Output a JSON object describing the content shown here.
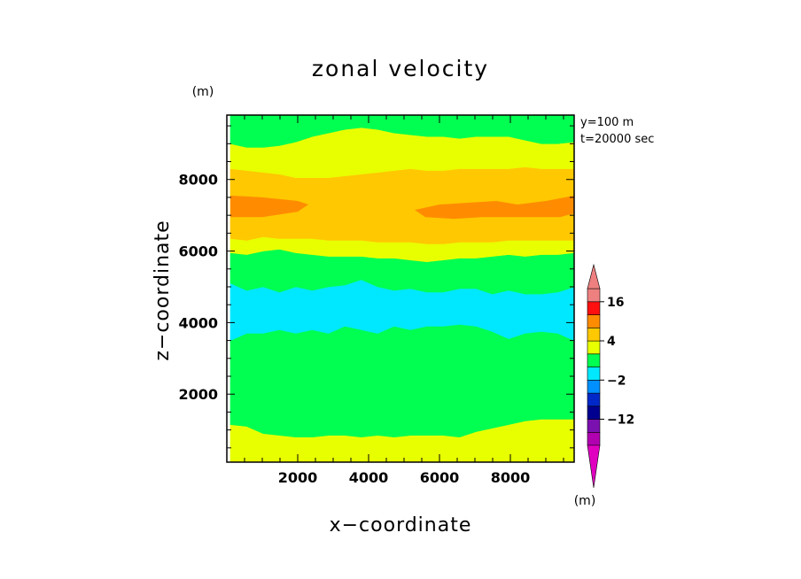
{
  "chart_data": {
    "type": "heatmap",
    "title": "zonal velocity",
    "xlabel": "x−coordinate",
    "ylabel": "z−coordinate",
    "y_unit": "(m)",
    "colorbar_unit": "(m)",
    "annotation": [
      "y=100  m",
      "t=20000  sec"
    ],
    "xlim": [
      0,
      9800
    ],
    "ylim": [
      100,
      9800
    ],
    "x_ticks": [
      "2000",
      "4000",
      "6000",
      "8000"
    ],
    "x_tick_values": [
      2000,
      4000,
      6000,
      8000
    ],
    "y_ticks": [
      "2000",
      "4000",
      "6000",
      "8000"
    ],
    "y_tick_values": [
      2000,
      4000,
      6000,
      8000
    ],
    "colorbar_labels": [
      "16",
      "4",
      "−2",
      "−12"
    ],
    "colorbar_label_levels": [
      16,
      4,
      -2,
      -12
    ],
    "colorbar_levels": [
      -20,
      -16,
      -12,
      -8,
      -4,
      -2,
      0,
      2,
      4,
      8,
      12,
      16,
      20
    ],
    "colorbar_colors": [
      "#b000b0",
      "#7a10b0",
      "#000090",
      "#0028c8",
      "#0090ff",
      "#00e8ff",
      "#00ff50",
      "#e8ff00",
      "#ffc800",
      "#ff8c00",
      "#ff1010",
      "#ee8080"
    ],
    "bands": [
      {
        "range": "2 to 4",
        "color": "#e8ff00",
        "lower": 100,
        "upper": [
          1150,
          1100,
          900,
          850,
          800,
          800,
          850,
          850,
          800,
          850,
          800,
          850,
          850,
          850,
          800,
          950,
          1050,
          1150,
          1250,
          1300,
          1300,
          1300
        ]
      },
      {
        "range": "0 to 2",
        "color": "#00ff50",
        "lower": [
          1150,
          1100,
          900,
          850,
          800,
          800,
          850,
          850,
          800,
          850,
          800,
          850,
          850,
          850,
          800,
          950,
          1050,
          1150,
          1250,
          1300,
          1300,
          1300
        ],
        "upper": [
          3500,
          3700,
          3700,
          3800,
          3700,
          3800,
          3700,
          3900,
          3800,
          3700,
          3900,
          3800,
          3900,
          3900,
          3950,
          3900,
          3750,
          3550,
          3700,
          3750,
          3700,
          3500
        ]
      },
      {
        "range": "-2 to 0",
        "color": "#00e8ff",
        "lower": [
          3500,
          3700,
          3700,
          3800,
          3700,
          3800,
          3700,
          3900,
          3800,
          3700,
          3900,
          3800,
          3900,
          3900,
          3950,
          3900,
          3750,
          3550,
          3700,
          3750,
          3700,
          3500
        ],
        "upper": [
          5100,
          4900,
          5000,
          4850,
          5000,
          4900,
          5000,
          5050,
          5200,
          5000,
          4900,
          4950,
          4850,
          4850,
          4950,
          4950,
          4800,
          4900,
          4800,
          4800,
          4850,
          5000
        ]
      },
      {
        "range": "0 to 2",
        "color": "#00ff50",
        "lower": [
          5100,
          4900,
          5000,
          4850,
          5000,
          4900,
          5000,
          5050,
          5200,
          5000,
          4900,
          4950,
          4850,
          4850,
          4950,
          4950,
          4800,
          4900,
          4800,
          4800,
          4850,
          5000
        ],
        "upper": [
          5950,
          5900,
          6000,
          6050,
          5950,
          5900,
          5850,
          5850,
          5850,
          5800,
          5800,
          5750,
          5700,
          5750,
          5800,
          5800,
          5850,
          5900,
          5850,
          5900,
          5900,
          5950
        ]
      },
      {
        "range": "2 to 4",
        "color": "#e8ff00",
        "lower": [
          5950,
          5900,
          6000,
          6050,
          5950,
          5900,
          5850,
          5850,
          5850,
          5800,
          5800,
          5750,
          5700,
          5750,
          5800,
          5800,
          5850,
          5900,
          5850,
          5900,
          5900,
          5950
        ],
        "upper": [
          6350,
          6300,
          6400,
          6350,
          6350,
          6350,
          6300,
          6300,
          6300,
          6250,
          6250,
          6250,
          6200,
          6200,
          6250,
          6250,
          6250,
          6300,
          6300,
          6300,
          6300,
          6300
        ]
      },
      {
        "range": "4 to 8",
        "color": "#ffc800",
        "lower": [
          6350,
          6300,
          6400,
          6350,
          6350,
          6350,
          6300,
          6300,
          6300,
          6250,
          6250,
          6250,
          6200,
          6200,
          6250,
          6250,
          6250,
          6300,
          6300,
          6300,
          6300,
          6300
        ],
        "upper": [
          8300,
          8250,
          8200,
          8150,
          8050,
          8050,
          8050,
          8100,
          8150,
          8200,
          8250,
          8300,
          8250,
          8250,
          8300,
          8300,
          8300,
          8300,
          8350,
          8300,
          8300,
          8300
        ]
      },
      {
        "range": "2 to 4",
        "color": "#e8ff00",
        "lower": [
          8300,
          8250,
          8200,
          8150,
          8050,
          8050,
          8050,
          8100,
          8150,
          8200,
          8250,
          8300,
          8250,
          8250,
          8300,
          8300,
          8300,
          8300,
          8350,
          8300,
          8300,
          8300
        ],
        "upper": [
          9000,
          8900,
          8900,
          8950,
          9050,
          9200,
          9300,
          9400,
          9450,
          9400,
          9300,
          9250,
          9200,
          9200,
          9150,
          9200,
          9200,
          9200,
          9100,
          9000,
          9000,
          9050
        ]
      },
      {
        "range": "0 to 2",
        "color": "#00ff50",
        "lower": [
          9000,
          8900,
          8900,
          8950,
          9050,
          9200,
          9300,
          9400,
          9450,
          9400,
          9300,
          9250,
          9200,
          9200,
          9150,
          9200,
          9200,
          9200,
          9100,
          9000,
          9000,
          9050
        ],
        "upper": 9800
      }
    ],
    "cores": [
      {
        "range": "8 to 12",
        "color": "#ff8c00",
        "x": [
          100,
          1000,
          2000,
          2300,
          2000,
          1000,
          100
        ],
        "y": [
          7550,
          7500,
          7400,
          7300,
          7100,
          6950,
          6950
        ]
      },
      {
        "range": "8 to 12",
        "color": "#ff8c00",
        "x": [
          9800,
          9000,
          8200,
          7600,
          6800,
          6000,
          5300,
          5600,
          6400,
          7200,
          8000,
          8700,
          9400,
          9800
        ],
        "y": [
          7550,
          7400,
          7300,
          7400,
          7350,
          7300,
          7150,
          6950,
          6900,
          6950,
          6950,
          6950,
          6950,
          7050
        ]
      }
    ],
    "band_x": [
      100,
      562,
      1024,
      1486,
      1948,
      2410,
      2871,
      3333,
      3795,
      4257,
      4719,
      5181,
      5643,
      6105,
      6567,
      7029,
      7490,
      7952,
      8414,
      8876,
      9338,
      9800
    ]
  }
}
